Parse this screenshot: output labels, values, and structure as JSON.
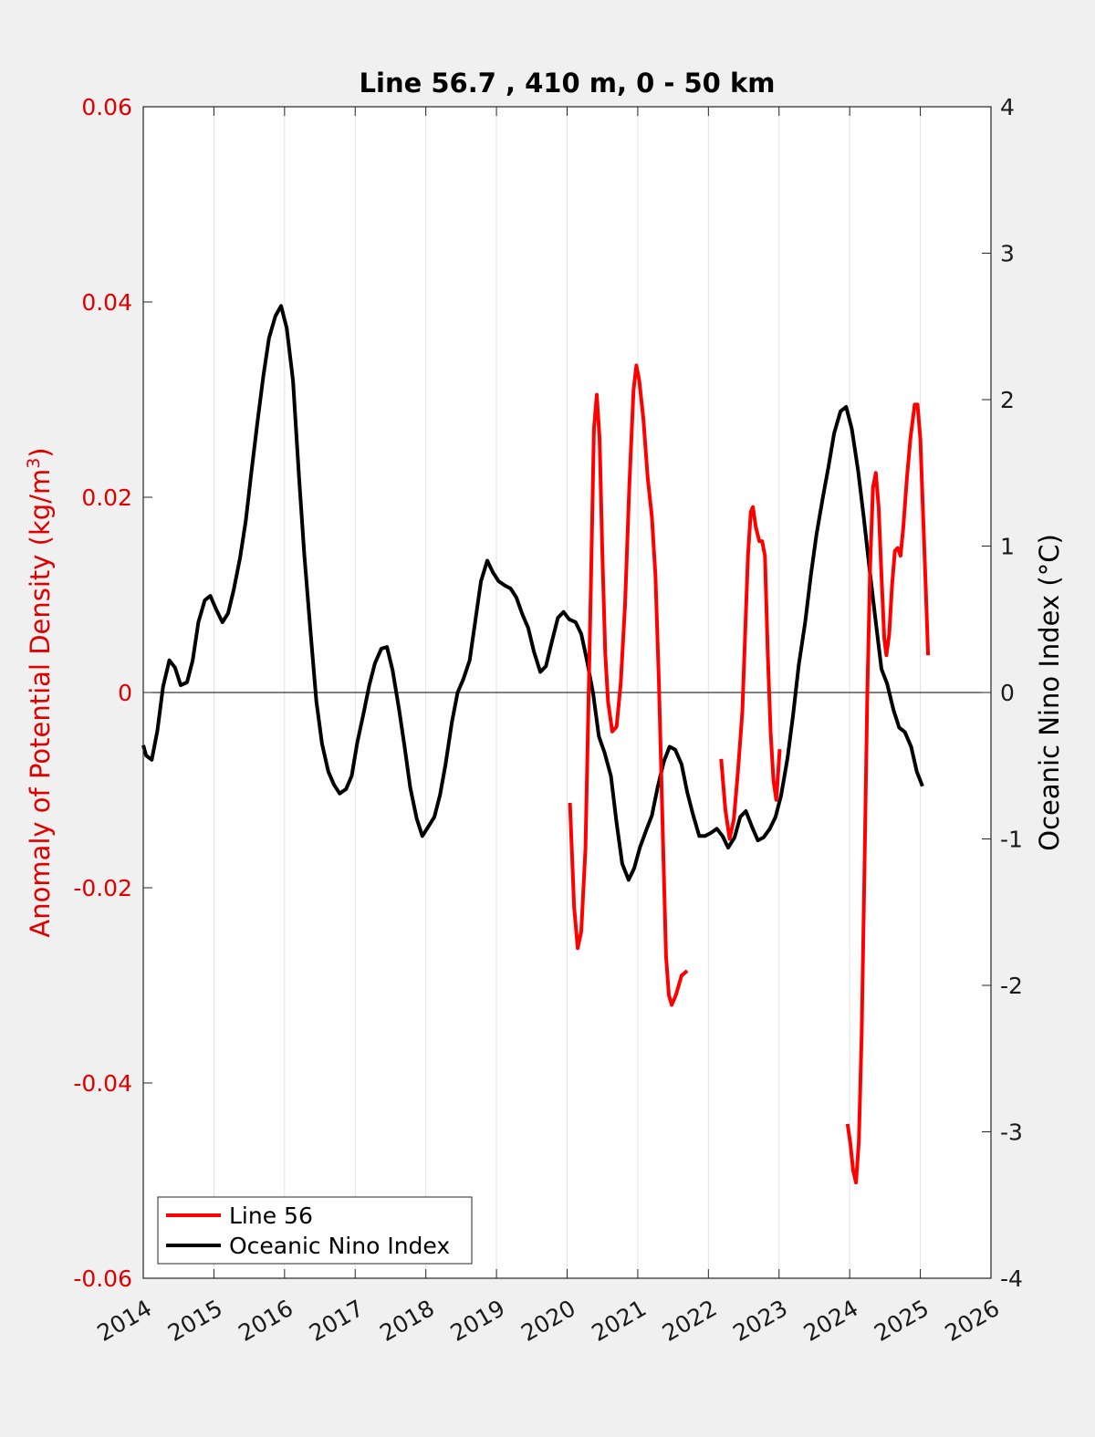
{
  "chart_data": {
    "type": "line",
    "title": "Line 56.7 , 410 m, 0 - 50 km",
    "ylabel_left_parts": [
      "Anomaly of Potential Density (kg/m",
      "3",
      ")"
    ],
    "ylabel_right": "Oceanic Nino Index (°C)",
    "xlim": [
      2014,
      2026
    ],
    "ylim_left": [
      -0.06,
      0.06
    ],
    "ylim_right": [
      -4,
      4
    ],
    "x_ticks": [
      "2014",
      "2015",
      "2016",
      "2017",
      "2018",
      "2019",
      "2020",
      "2021",
      "2022",
      "2023",
      "2024",
      "2025",
      "2026"
    ],
    "left_ticks": [
      "-0.06",
      "-0.04",
      "-0.02",
      "0",
      "0.02",
      "0.04",
      "0.06"
    ],
    "right_ticks": [
      "-4",
      "-3",
      "-2",
      "-1",
      "0",
      "1",
      "2",
      "3",
      "4"
    ],
    "grid": "vertical",
    "legend_position": "bottom-left",
    "colors": {
      "line56": "#ff0000",
      "oni": "#000000",
      "left_axis": "#e00000"
    },
    "series": [
      {
        "name": "Line 56",
        "axis": "left",
        "segments": [
          [
            [
              2020.04,
              -0.0113
            ],
            [
              2020.1,
              -0.022
            ],
            [
              2020.15,
              -0.0262
            ],
            [
              2020.2,
              -0.0245
            ],
            [
              2020.26,
              -0.016
            ],
            [
              2020.3,
              -0.002
            ],
            [
              2020.34,
              0.012
            ],
            [
              2020.38,
              0.027
            ],
            [
              2020.42,
              0.0305
            ],
            [
              2020.46,
              0.026
            ],
            [
              2020.5,
              0.014
            ],
            [
              2020.54,
              0.004
            ],
            [
              2020.58,
              -0.001
            ],
            [
              2020.64,
              -0.004
            ],
            [
              2020.7,
              -0.0035
            ],
            [
              2020.76,
              0.001
            ],
            [
              2020.82,
              0.009
            ],
            [
              2020.88,
              0.021
            ],
            [
              2020.94,
              0.031
            ],
            [
              2020.98,
              0.0335
            ],
            [
              2021.02,
              0.032
            ],
            [
              2021.08,
              0.028
            ],
            [
              2021.14,
              0.022
            ],
            [
              2021.2,
              0.018
            ],
            [
              2021.25,
              0.012
            ],
            [
              2021.3,
              0.001
            ],
            [
              2021.36,
              -0.016
            ],
            [
              2021.4,
              -0.027
            ],
            [
              2021.44,
              -0.031
            ],
            [
              2021.48,
              -0.032
            ],
            [
              2021.54,
              -0.031
            ],
            [
              2021.62,
              -0.029
            ],
            [
              2021.7,
              -0.0285
            ]
          ],
          [
            [
              2022.18,
              -0.0068
            ],
            [
              2022.24,
              -0.012
            ],
            [
              2022.3,
              -0.015
            ],
            [
              2022.36,
              -0.013
            ],
            [
              2022.42,
              -0.008
            ],
            [
              2022.48,
              -0.002
            ],
            [
              2022.52,
              0.006
            ],
            [
              2022.56,
              0.014
            ],
            [
              2022.6,
              0.0185
            ],
            [
              2022.63,
              0.019
            ],
            [
              2022.67,
              0.017
            ],
            [
              2022.72,
              0.0155
            ],
            [
              2022.76,
              0.0155
            ],
            [
              2022.8,
              0.014
            ],
            [
              2022.84,
              0.004
            ],
            [
              2022.88,
              -0.004
            ],
            [
              2022.92,
              -0.009
            ],
            [
              2022.96,
              -0.011
            ],
            [
              2023.01,
              -0.0058
            ]
          ],
          [
            [
              2023.97,
              -0.0442
            ],
            [
              2024.01,
              -0.0462
            ],
            [
              2024.05,
              -0.049
            ],
            [
              2024.09,
              -0.0502
            ],
            [
              2024.13,
              -0.046
            ],
            [
              2024.17,
              -0.035
            ],
            [
              2024.21,
              -0.018
            ],
            [
              2024.25,
              0.0
            ],
            [
              2024.29,
              0.013
            ],
            [
              2024.33,
              0.021
            ],
            [
              2024.37,
              0.0225
            ],
            [
              2024.41,
              0.019
            ],
            [
              2024.45,
              0.012
            ],
            [
              2024.49,
              0.0055
            ],
            [
              2024.52,
              0.0038
            ],
            [
              2024.56,
              0.006
            ],
            [
              2024.6,
              0.011
            ],
            [
              2024.64,
              0.0145
            ],
            [
              2024.68,
              0.0148
            ],
            [
              2024.72,
              0.014
            ],
            [
              2024.76,
              0.017
            ],
            [
              2024.81,
              0.022
            ],
            [
              2024.86,
              0.026
            ],
            [
              2024.92,
              0.0295
            ],
            [
              2024.96,
              0.0295
            ],
            [
              2025.0,
              0.026
            ],
            [
              2025.04,
              0.018
            ],
            [
              2025.08,
              0.01
            ],
            [
              2025.11,
              0.0038
            ]
          ]
        ]
      },
      {
        "name": "Oceanic Nino Index",
        "axis": "right",
        "segments": [
          [
            [
              2014.0,
              -0.36
            ],
            [
              2014.04,
              -0.43
            ],
            [
              2014.12,
              -0.46
            ],
            [
              2014.2,
              -0.26
            ],
            [
              2014.28,
              0.04
            ],
            [
              2014.37,
              0.22
            ],
            [
              2014.45,
              0.17
            ],
            [
              2014.53,
              0.05
            ],
            [
              2014.62,
              0.07
            ],
            [
              2014.7,
              0.22
            ],
            [
              2014.78,
              0.48
            ],
            [
              2014.87,
              0.63
            ],
            [
              2014.95,
              0.66
            ],
            [
              2015.03,
              0.57
            ],
            [
              2015.12,
              0.48
            ],
            [
              2015.2,
              0.54
            ],
            [
              2015.28,
              0.7
            ],
            [
              2015.37,
              0.92
            ],
            [
              2015.45,
              1.17
            ],
            [
              2015.53,
              1.5
            ],
            [
              2015.62,
              1.86
            ],
            [
              2015.7,
              2.16
            ],
            [
              2015.78,
              2.42
            ],
            [
              2015.87,
              2.57
            ],
            [
              2015.95,
              2.64
            ],
            [
              2016.03,
              2.49
            ],
            [
              2016.12,
              2.13
            ],
            [
              2016.2,
              1.51
            ],
            [
              2016.28,
              0.94
            ],
            [
              2016.37,
              0.4
            ],
            [
              2016.45,
              -0.06
            ],
            [
              2016.53,
              -0.35
            ],
            [
              2016.62,
              -0.54
            ],
            [
              2016.7,
              -0.63
            ],
            [
              2016.78,
              -0.69
            ],
            [
              2016.87,
              -0.66
            ],
            [
              2016.95,
              -0.57
            ],
            [
              2017.03,
              -0.34
            ],
            [
              2017.12,
              -0.14
            ],
            [
              2017.2,
              0.05
            ],
            [
              2017.28,
              0.2
            ],
            [
              2017.37,
              0.3
            ],
            [
              2017.45,
              0.31
            ],
            [
              2017.53,
              0.15
            ],
            [
              2017.62,
              -0.11
            ],
            [
              2017.7,
              -0.37
            ],
            [
              2017.78,
              -0.65
            ],
            [
              2017.87,
              -0.86
            ],
            [
              2017.95,
              -0.98
            ],
            [
              2018.03,
              -0.92
            ],
            [
              2018.12,
              -0.85
            ],
            [
              2018.2,
              -0.7
            ],
            [
              2018.28,
              -0.49
            ],
            [
              2018.37,
              -0.2
            ],
            [
              2018.45,
              0.0
            ],
            [
              2018.53,
              0.09
            ],
            [
              2018.62,
              0.22
            ],
            [
              2018.7,
              0.49
            ],
            [
              2018.78,
              0.76
            ],
            [
              2018.87,
              0.9
            ],
            [
              2018.95,
              0.82
            ],
            [
              2019.03,
              0.76
            ],
            [
              2019.12,
              0.73
            ],
            [
              2019.2,
              0.71
            ],
            [
              2019.28,
              0.65
            ],
            [
              2019.37,
              0.53
            ],
            [
              2019.45,
              0.44
            ],
            [
              2019.53,
              0.28
            ],
            [
              2019.62,
              0.14
            ],
            [
              2019.7,
              0.18
            ],
            [
              2019.78,
              0.34
            ],
            [
              2019.87,
              0.51
            ],
            [
              2019.95,
              0.55
            ],
            [
              2020.03,
              0.5
            ],
            [
              2020.12,
              0.48
            ],
            [
              2020.2,
              0.4
            ],
            [
              2020.28,
              0.22
            ],
            [
              2020.37,
              -0.01
            ],
            [
              2020.45,
              -0.3
            ],
            [
              2020.53,
              -0.41
            ],
            [
              2020.62,
              -0.57
            ],
            [
              2020.7,
              -0.89
            ],
            [
              2020.78,
              -1.17
            ],
            [
              2020.87,
              -1.28
            ],
            [
              2020.95,
              -1.2
            ],
            [
              2021.03,
              -1.06
            ],
            [
              2021.12,
              -0.94
            ],
            [
              2021.2,
              -0.84
            ],
            [
              2021.28,
              -0.65
            ],
            [
              2021.37,
              -0.47
            ],
            [
              2021.45,
              -0.37
            ],
            [
              2021.53,
              -0.39
            ],
            [
              2021.62,
              -0.49
            ],
            [
              2021.7,
              -0.68
            ],
            [
              2021.78,
              -0.83
            ],
            [
              2021.87,
              -0.98
            ],
            [
              2021.95,
              -0.98
            ],
            [
              2022.03,
              -0.96
            ],
            [
              2022.12,
              -0.93
            ],
            [
              2022.2,
              -0.98
            ],
            [
              2022.28,
              -1.06
            ],
            [
              2022.37,
              -0.99
            ],
            [
              2022.45,
              -0.85
            ],
            [
              2022.53,
              -0.81
            ],
            [
              2022.62,
              -0.92
            ],
            [
              2022.7,
              -1.01
            ],
            [
              2022.78,
              -0.99
            ],
            [
              2022.87,
              -0.93
            ],
            [
              2022.95,
              -0.85
            ],
            [
              2023.03,
              -0.7
            ],
            [
              2023.12,
              -0.45
            ],
            [
              2023.2,
              -0.15
            ],
            [
              2023.28,
              0.19
            ],
            [
              2023.37,
              0.48
            ],
            [
              2023.45,
              0.8
            ],
            [
              2023.53,
              1.08
            ],
            [
              2023.62,
              1.33
            ],
            [
              2023.7,
              1.54
            ],
            [
              2023.78,
              1.77
            ],
            [
              2023.87,
              1.92
            ],
            [
              2023.95,
              1.95
            ],
            [
              2024.03,
              1.8
            ],
            [
              2024.12,
              1.51
            ],
            [
              2024.2,
              1.19
            ],
            [
              2024.28,
              0.85
            ],
            [
              2024.37,
              0.48
            ],
            [
              2024.45,
              0.16
            ],
            [
              2024.53,
              0.06
            ],
            [
              2024.62,
              -0.12
            ],
            [
              2024.7,
              -0.24
            ],
            [
              2024.78,
              -0.27
            ],
            [
              2024.87,
              -0.37
            ],
            [
              2024.95,
              -0.54
            ],
            [
              2025.03,
              -0.64
            ]
          ]
        ]
      }
    ]
  }
}
